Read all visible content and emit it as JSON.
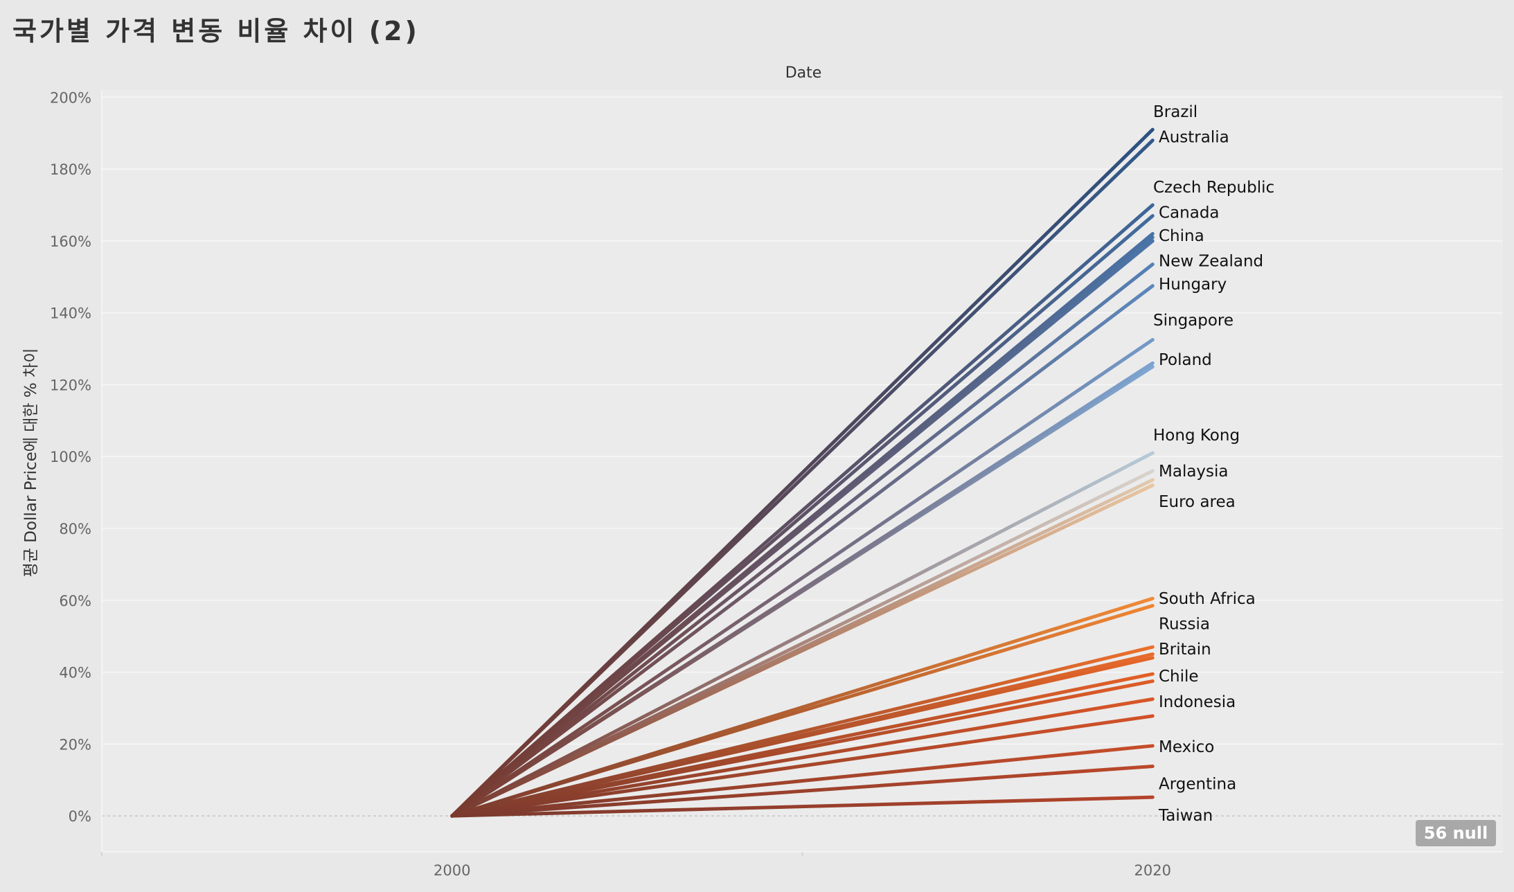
{
  "title": "국가별 가격 변동 비율 차이 (2)",
  "null_badge": "56 null",
  "chart_data": {
    "type": "line",
    "title": "국가별 가격 변동 비율 차이 (2)",
    "xlabel": "Date",
    "ylabel": "평균 Dollar Price에 대한 % 차이",
    "x": [
      2000,
      2020
    ],
    "x_ticks": [
      "2000",
      "2020"
    ],
    "x_range": [
      1990,
      2030
    ],
    "ylim": [
      -0.1,
      2.02
    ],
    "y_ticks": [
      {
        "value": 0,
        "label": "0%"
      },
      {
        "value": 0.2,
        "label": "20%"
      },
      {
        "value": 0.4,
        "label": "40%"
      },
      {
        "value": 0.6,
        "label": "60%"
      },
      {
        "value": 0.8,
        "label": "80%"
      },
      {
        "value": 1.0,
        "label": "100%"
      },
      {
        "value": 1.2,
        "label": "120%"
      },
      {
        "value": 1.4,
        "label": "140%"
      },
      {
        "value": 1.6,
        "label": "160%"
      },
      {
        "value": 1.8,
        "label": "180%"
      },
      {
        "value": 2.0,
        "label": "200%"
      }
    ],
    "grid": true,
    "legend": "none",
    "start_color": "#7a3a2e",
    "series": [
      {
        "name": "Brazil",
        "values": [
          0,
          1.91
        ],
        "color": "#2b5281",
        "label": "Brazil",
        "label_value": 1.96
      },
      {
        "name": "Australia",
        "values": [
          0,
          1.88
        ],
        "color": "#31598a",
        "label": "Australia",
        "label_value": 1.89
      },
      {
        "name": "Czech Republic",
        "values": [
          0,
          1.7
        ],
        "color": "#3d6699",
        "label": "Czech Republic",
        "label_value": 1.75
      },
      {
        "name": "Canada",
        "values": [
          0,
          1.67
        ],
        "color": "#406b9e",
        "label": "Canada",
        "label_value": 1.68
      },
      {
        "name": "China",
        "values": [
          0,
          1.62
        ],
        "color": "#4872a6",
        "label": "China",
        "label_value": 1.615
      },
      {
        "name": "",
        "values": [
          0,
          1.61
        ],
        "color": "#4a74a8",
        "label": "",
        "label_value": 0
      },
      {
        "name": "",
        "values": [
          0,
          1.6
        ],
        "color": "#4b75a9",
        "label": "",
        "label_value": 0
      },
      {
        "name": "New Zealand",
        "values": [
          0,
          1.535
        ],
        "color": "#5580b4",
        "label": "New Zealand",
        "label_value": 1.545
      },
      {
        "name": "Hungary",
        "values": [
          0,
          1.475
        ],
        "color": "#5b87bb",
        "label": "Hungary",
        "label_value": 1.48
      },
      {
        "name": "Singapore",
        "values": [
          0,
          1.325
        ],
        "color": "#7399c8",
        "label": "Singapore",
        "label_value": 1.38
      },
      {
        "name": "Poland",
        "values": [
          0,
          1.26
        ],
        "color": "#7ba3d0",
        "label": "Poland",
        "label_value": 1.27
      },
      {
        "name": "",
        "values": [
          0,
          1.25
        ],
        "color": "#7fa7d3",
        "label": "",
        "label_value": 0
      },
      {
        "name": "Hong Kong",
        "values": [
          0,
          1.01
        ],
        "color": "#b6c9d6",
        "label": "Hong Kong",
        "label_value": 1.06
      },
      {
        "name": "Malaysia",
        "values": [
          0,
          0.96
        ],
        "color": "#d8d3cc",
        "label": "Malaysia",
        "label_value": 0.96
      },
      {
        "name": "",
        "values": [
          0,
          0.935
        ],
        "color": "#e2c9ae",
        "label": "",
        "label_value": 0
      },
      {
        "name": "Euro area",
        "values": [
          0,
          0.92
        ],
        "color": "#e8c4a0",
        "label": "Euro area",
        "label_value": 0.875
      },
      {
        "name": "South Africa",
        "values": [
          0,
          0.605
        ],
        "color": "#f08a36",
        "label": "South Africa",
        "label_value": 0.605
      },
      {
        "name": "Russia",
        "values": [
          0,
          0.585
        ],
        "color": "#ee8533",
        "label": "Russia",
        "label_value": 0.535
      },
      {
        "name": "Britain",
        "values": [
          0,
          0.47
        ],
        "color": "#ea6f2c",
        "label": "Britain",
        "label_value": 0.465
      },
      {
        "name": "",
        "values": [
          0,
          0.45
        ],
        "color": "#e86a2a",
        "label": "",
        "label_value": 0
      },
      {
        "name": "",
        "values": [
          0,
          0.44
        ],
        "color": "#e66628",
        "label": "",
        "label_value": 0
      },
      {
        "name": "Chile",
        "values": [
          0,
          0.395
        ],
        "color": "#e26027",
        "label": "Chile",
        "label_value": 0.39
      },
      {
        "name": "",
        "values": [
          0,
          0.375
        ],
        "color": "#de5b26",
        "label": "",
        "label_value": 0
      },
      {
        "name": "Indonesia",
        "values": [
          0,
          0.325
        ],
        "color": "#d95627",
        "label": "Indonesia",
        "label_value": 0.318
      },
      {
        "name": "",
        "values": [
          0,
          0.278
        ],
        "color": "#d25228",
        "label": "",
        "label_value": 0
      },
      {
        "name": "Mexico",
        "values": [
          0,
          0.195
        ],
        "color": "#c74d29",
        "label": "Mexico",
        "label_value": 0.193
      },
      {
        "name": "Argentina",
        "values": [
          0,
          0.138
        ],
        "color": "#bb482a",
        "label": "Argentina",
        "label_value": 0.09
      },
      {
        "name": "Taiwan",
        "values": [
          0,
          0.052
        ],
        "color": "#b3432a",
        "label": "Taiwan",
        "label_value": 0.002
      }
    ]
  }
}
